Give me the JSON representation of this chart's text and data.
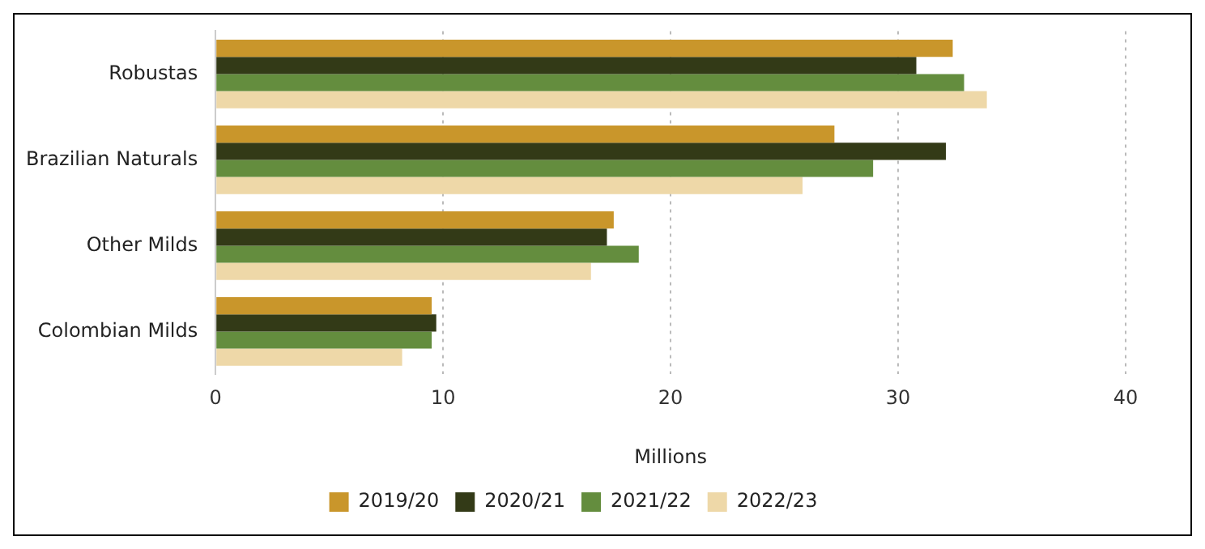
{
  "chart_data": {
    "type": "bar",
    "orientation": "horizontal",
    "xlabel": "Millions",
    "categories": [
      "Robustas",
      "Brazilian Naturals",
      "Other Milds",
      "Colombian Milds"
    ],
    "series": [
      {
        "name": "2019/20",
        "color": "#c9962b",
        "values": [
          32.4,
          27.2,
          17.5,
          9.5
        ]
      },
      {
        "name": "2020/21",
        "color": "#333a17",
        "values": [
          30.8,
          32.1,
          17.2,
          9.7
        ]
      },
      {
        "name": "2021/22",
        "color": "#648d3e",
        "values": [
          32.9,
          28.9,
          18.6,
          9.5
        ]
      },
      {
        "name": "2022/23",
        "color": "#eed8a8",
        "values": [
          33.9,
          25.8,
          16.5,
          8.2
        ]
      }
    ],
    "xlim": [
      0,
      40
    ],
    "xticks": [
      0,
      10,
      20,
      30,
      40
    ],
    "grid": "x",
    "line_style": "dotted",
    "legend": "bottom"
  }
}
